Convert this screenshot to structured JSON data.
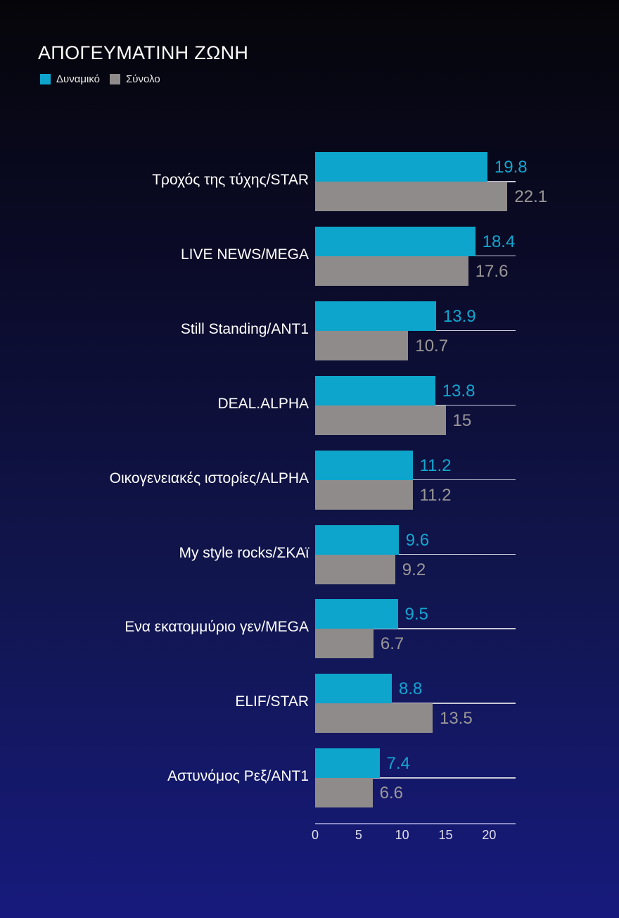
{
  "chart_data": {
    "type": "bar",
    "orientation": "horizontal",
    "title": "ΑΠΟΓΕΥΜΑΤΙΝΗ ΖΩΝΗ",
    "legend": [
      {
        "name": "Δυναμικό",
        "color": "#0ea5cc"
      },
      {
        "name": "Σύνολο",
        "color": "#8f8b8a"
      }
    ],
    "legend_position": "top-left",
    "categories": [
      "Τροχός της τύχης/STAR",
      "LIVE NEWS/MEGA",
      "Still Standing/ANT1",
      "DEAL.ALPHA",
      "Οικογενειακές ιστορίες/ALPHA",
      "My style rocks/ΣΚΑϊ",
      "Ενα εκατομμύριο γεν/MEGA",
      "ELIF/STAR",
      "Αστυνόμος Ρεξ/ANT1"
    ],
    "series": [
      {
        "name": "Δυναμικό",
        "values": [
          19.8,
          18.4,
          13.9,
          13.8,
          11.2,
          9.6,
          9.5,
          8.8,
          7.4
        ]
      },
      {
        "name": "Σύνολο",
        "values": [
          22.1,
          17.6,
          10.7,
          15,
          11.2,
          9.2,
          6.7,
          13.5,
          6.6
        ]
      }
    ],
    "value_labels": {
      "Δυναμικό": [
        "19.8",
        "18.4",
        "13.9",
        "13.8",
        "11.2",
        "9.6",
        "9.5",
        "8.8",
        "7.4"
      ],
      "Σύνολο": [
        "22.1",
        "17.6",
        "10.7",
        "15",
        "11.2",
        "9.2",
        "6.7",
        "13.5",
        "6.6"
      ]
    },
    "xlabel": "",
    "ylabel": "",
    "xticks": [
      "0",
      "5",
      "10",
      "15",
      "20"
    ],
    "xlim": [
      0,
      23
    ],
    "grid": false
  },
  "colors": {
    "primary": "#0ea5cc",
    "secondary": "#8f8b8a"
  }
}
